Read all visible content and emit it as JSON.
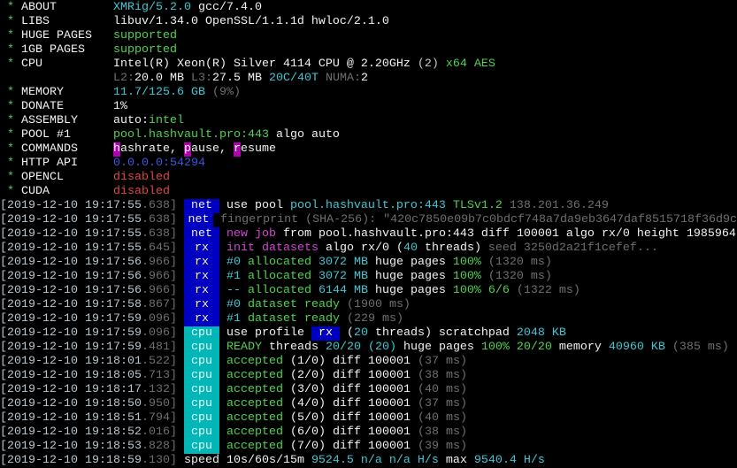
{
  "colors": {
    "tag_net_rx": "#0000c0",
    "tag_cpu": "#00b6b6",
    "green": "#4fd24f",
    "cyan": "#3ec8d6",
    "magenta": "#d442d4",
    "red": "#dc4646",
    "blue": "#3d55e6",
    "dim": "#6f6f6f"
  },
  "header": [
    {
      "label": "ABOUT",
      "segments": [
        [
          "XMRig/5.2.0",
          "c"
        ],
        [
          " gcc/7.4.0",
          "W"
        ]
      ]
    },
    {
      "label": "LIBS",
      "segments": [
        [
          "libuv/1.34.0 OpenSSL/1.1.1d hwloc/2.1.0",
          "W"
        ]
      ]
    },
    {
      "label": "HUGE PAGES",
      "segments": [
        [
          "supported",
          "g"
        ]
      ]
    },
    {
      "label": "1GB PAGES",
      "segments": [
        [
          "supported",
          "g"
        ]
      ]
    },
    {
      "label": "CPU",
      "segments": [
        [
          "Intel(R) Xeon(R) Silver 4114 CPU @ 2.20GHz",
          "W"
        ],
        [
          " (2)",
          "w"
        ],
        [
          " x64",
          "g"
        ],
        [
          " AES",
          "g"
        ]
      ]
    },
    {
      "label": "",
      "segments": [
        [
          "L2:",
          "G"
        ],
        [
          "20.0 MB",
          "W"
        ],
        [
          " L3:",
          "G"
        ],
        [
          "27.5 MB",
          "W"
        ],
        [
          " 20C/40T",
          "c"
        ],
        [
          " NUMA:",
          "G"
        ],
        [
          "2",
          "W"
        ]
      ]
    },
    {
      "label": "MEMORY",
      "segments": [
        [
          "11.7/125.6 GB",
          "c"
        ],
        [
          " (9%)",
          "G"
        ]
      ]
    },
    {
      "label": "DONATE",
      "segments": [
        [
          "1%",
          "W"
        ]
      ]
    },
    {
      "label": "ASSEMBLY",
      "segments": [
        [
          "auto:",
          "W"
        ],
        [
          "intel",
          "g"
        ]
      ]
    },
    {
      "label": "POOL #1",
      "segments": [
        [
          "pool.hashvault.pro:443",
          "g"
        ],
        [
          " algo auto",
          "W"
        ]
      ]
    },
    {
      "label": "COMMANDS",
      "segments": [
        [
          "h",
          "hl"
        ],
        [
          "ashrate, ",
          "W"
        ],
        [
          "p",
          "hl"
        ],
        [
          "ause, ",
          "W"
        ],
        [
          "r",
          "hl"
        ],
        [
          "esume",
          "W"
        ]
      ]
    },
    {
      "label": "HTTP API",
      "segments": [
        [
          "0.0.0.0:54294",
          "b"
        ]
      ]
    },
    {
      "label": "OPENCL",
      "segments": [
        [
          "disabled",
          "r"
        ]
      ]
    },
    {
      "label": "CUDA",
      "segments": [
        [
          "disabled",
          "r"
        ]
      ]
    }
  ],
  "log": [
    {
      "ts": "[2019-12-10 19:17:55",
      "ms": ".638]",
      "tag": "net",
      "segments": [
        [
          "use pool ",
          "W"
        ],
        [
          "pool.hashvault.pro:443",
          "c"
        ],
        [
          " TLSv1.2",
          "g"
        ],
        [
          " 138.201.36.249",
          "G"
        ]
      ]
    },
    {
      "ts": "[2019-12-10 19:17:55",
      "ms": ".638]",
      "tag": "net",
      "segments": [
        [
          "fingerprint (SHA-256): \"420c7850e09b7c0bdcf748a7da9eb3647daf8515718f36d9c",
          "G"
        ]
      ]
    },
    {
      "ts": "[2019-12-10 19:17:55",
      "ms": ".638]",
      "tag": "net",
      "segments": [
        [
          "new job",
          "m"
        ],
        [
          " from ",
          "W"
        ],
        [
          "pool.hashvault.pro:443",
          "W"
        ],
        [
          " diff ",
          "W"
        ],
        [
          "100001",
          "W"
        ],
        [
          " algo ",
          "W"
        ],
        [
          "rx/0",
          "W"
        ],
        [
          " height ",
          "W"
        ],
        [
          "1985964",
          "W"
        ]
      ]
    },
    {
      "ts": "[2019-12-10 19:17:55",
      "ms": ".645]",
      "tag": "rx",
      "segments": [
        [
          "init datasets",
          "m"
        ],
        [
          " algo ",
          "W"
        ],
        [
          "rx/0",
          "W"
        ],
        [
          " (",
          "W"
        ],
        [
          "40",
          "c"
        ],
        [
          " threads)",
          "W"
        ],
        [
          " seed 3250d2a21f1cefef...",
          "G"
        ]
      ]
    },
    {
      "ts": "[2019-12-10 19:17:56",
      "ms": ".966]",
      "tag": "rx",
      "segments": [
        [
          "#0",
          "c"
        ],
        [
          " allocated",
          "g"
        ],
        [
          " 3072 MB",
          "c"
        ],
        [
          " huge pages",
          "W"
        ],
        [
          " 100%",
          "g"
        ],
        [
          " (1320 ms)",
          "G"
        ]
      ]
    },
    {
      "ts": "[2019-12-10 19:17:56",
      "ms": ".966]",
      "tag": "rx",
      "segments": [
        [
          "#1",
          "c"
        ],
        [
          " allocated",
          "g"
        ],
        [
          " 3072 MB",
          "c"
        ],
        [
          " huge pages",
          "W"
        ],
        [
          " 100%",
          "g"
        ],
        [
          " (1320 ms)",
          "G"
        ]
      ]
    },
    {
      "ts": "[2019-12-10 19:17:56",
      "ms": ".966]",
      "tag": "rx",
      "segments": [
        [
          "--",
          "c"
        ],
        [
          " allocated",
          "g"
        ],
        [
          " 6144 MB",
          "c"
        ],
        [
          " huge pages",
          "W"
        ],
        [
          " 100% 6/6",
          "g"
        ],
        [
          " (1322 ms)",
          "G"
        ]
      ]
    },
    {
      "ts": "[2019-12-10 19:17:58",
      "ms": ".867]",
      "tag": "rx",
      "segments": [
        [
          "#0",
          "c"
        ],
        [
          " dataset ready",
          "g"
        ],
        [
          " (1900 ms)",
          "G"
        ]
      ]
    },
    {
      "ts": "[2019-12-10 19:17:59",
      "ms": ".096]",
      "tag": "rx",
      "segments": [
        [
          "#1",
          "c"
        ],
        [
          " dataset ready",
          "g"
        ],
        [
          " (229 ms)",
          "G"
        ]
      ]
    },
    {
      "ts": "[2019-12-10 19:17:59",
      "ms": ".096]",
      "tag": "cpu",
      "segments": [
        [
          "use profile ",
          "W"
        ],
        [
          " rx ",
          "bx"
        ],
        [
          " (",
          "W"
        ],
        [
          "20",
          "c"
        ],
        [
          " threads)",
          "W"
        ],
        [
          " scratchpad ",
          "W"
        ],
        [
          "2048 KB",
          "c"
        ]
      ]
    },
    {
      "ts": "[2019-12-10 19:17:59",
      "ms": ".481]",
      "tag": "cpu",
      "segments": [
        [
          "READY",
          "g"
        ],
        [
          " threads ",
          "W"
        ],
        [
          "20/20",
          "c"
        ],
        [
          " (20)",
          "c"
        ],
        [
          " huge pages ",
          "W"
        ],
        [
          "100% 20/20",
          "g"
        ],
        [
          " memory ",
          "W"
        ],
        [
          "40960 KB",
          "c"
        ],
        [
          " (385 ms)",
          "G"
        ]
      ]
    },
    {
      "ts": "[2019-12-10 19:18:01",
      "ms": ".522]",
      "tag": "cpu",
      "segments": [
        [
          "accepted",
          "g"
        ],
        [
          " (1/0)",
          "W"
        ],
        [
          " diff ",
          "W"
        ],
        [
          "100001",
          "W"
        ],
        [
          " (37 ms)",
          "G"
        ]
      ]
    },
    {
      "ts": "[2019-12-10 19:18:05",
      "ms": ".713]",
      "tag": "cpu",
      "segments": [
        [
          "accepted",
          "g"
        ],
        [
          " (2/0)",
          "W"
        ],
        [
          " diff ",
          "W"
        ],
        [
          "100001",
          "W"
        ],
        [
          " (38 ms)",
          "G"
        ]
      ]
    },
    {
      "ts": "[2019-12-10 19:18:17",
      "ms": ".132]",
      "tag": "cpu",
      "segments": [
        [
          "accepted",
          "g"
        ],
        [
          " (3/0)",
          "W"
        ],
        [
          " diff ",
          "W"
        ],
        [
          "100001",
          "W"
        ],
        [
          " (40 ms)",
          "G"
        ]
      ]
    },
    {
      "ts": "[2019-12-10 19:18:50",
      "ms": ".950]",
      "tag": "cpu",
      "segments": [
        [
          "accepted",
          "g"
        ],
        [
          " (4/0)",
          "W"
        ],
        [
          " diff ",
          "W"
        ],
        [
          "100001",
          "W"
        ],
        [
          " (37 ms)",
          "G"
        ]
      ]
    },
    {
      "ts": "[2019-12-10 19:18:51",
      "ms": ".794]",
      "tag": "cpu",
      "segments": [
        [
          "accepted",
          "g"
        ],
        [
          " (5/0)",
          "W"
        ],
        [
          " diff ",
          "W"
        ],
        [
          "100001",
          "W"
        ],
        [
          " (40 ms)",
          "G"
        ]
      ]
    },
    {
      "ts": "[2019-12-10 19:18:52",
      "ms": ".016]",
      "tag": "cpu",
      "segments": [
        [
          "accepted",
          "g"
        ],
        [
          " (6/0)",
          "W"
        ],
        [
          " diff ",
          "W"
        ],
        [
          "100001",
          "W"
        ],
        [
          " (38 ms)",
          "G"
        ]
      ]
    },
    {
      "ts": "[2019-12-10 19:18:53",
      "ms": ".828]",
      "tag": "cpu",
      "segments": [
        [
          "accepted",
          "g"
        ],
        [
          " (7/0)",
          "W"
        ],
        [
          " diff ",
          "W"
        ],
        [
          "100001",
          "W"
        ],
        [
          " (39 ms)",
          "G"
        ]
      ]
    },
    {
      "ts": "[2019-12-10 19:18:59",
      "ms": ".130]",
      "tag": "",
      "segments": [
        [
          "speed 10s/60s/15m ",
          "W"
        ],
        [
          "9524.5",
          "c"
        ],
        [
          " n/a n/a H/s",
          "c"
        ],
        [
          " max ",
          "W"
        ],
        [
          "9540.4 H/s",
          "c"
        ]
      ]
    }
  ]
}
